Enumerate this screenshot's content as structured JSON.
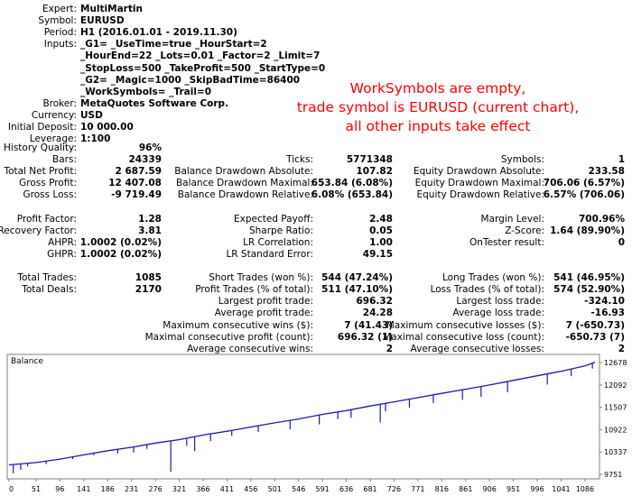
{
  "header": {
    "rows": [
      {
        "label": "Expert:",
        "value": "MultiMartin"
      },
      {
        "label": "Symbol:",
        "value": "EURUSD"
      },
      {
        "label": "Period:",
        "value": "H1 (2016.01.01 - 2019.11.30)"
      },
      {
        "label": "Inputs:",
        "value": "_G1= _UseTime=true _HourStart=2"
      },
      {
        "label": "",
        "value": "_HourEnd=22 _Lots=0.01 _Factor=2 _Limit=7"
      },
      {
        "label": "",
        "value": "_StopLoss=500 _TakeProfit=500 _StartType=0"
      },
      {
        "label": "",
        "value": "_G2= _Magic=1000 _SkipBadTime=86400"
      },
      {
        "label": "",
        "value": "_WorkSymbols= _Trail=0"
      },
      {
        "label": "Broker:",
        "value": "MetaQuotes Software Corp."
      },
      {
        "label": "Currency:",
        "value": "USD"
      },
      {
        "label": "Initial Deposit:",
        "value": "10 000.00"
      },
      {
        "label": "Leverage:",
        "value": "1:100"
      }
    ]
  },
  "annotation": {
    "lines": [
      "WorkSymbols are empty,",
      "trade symbol is EURUSD (current chart),",
      "all other inputs take effect"
    ],
    "color": "#ff0000"
  },
  "stats": {
    "col1": [
      {
        "label": "History Quality:",
        "value": "96%"
      },
      {
        "label": "Bars:",
        "value": "24339"
      },
      {
        "label": "Total Net Profit:",
        "value": "2 687.59"
      },
      {
        "label": "Gross Profit:",
        "value": "12 407.08"
      },
      {
        "label": "Gross Loss:",
        "value": "-9 719.49"
      },
      {
        "label": "",
        "value": ""
      },
      {
        "label": "Profit Factor:",
        "value": "1.28"
      },
      {
        "label": "Recovery Factor:",
        "value": "3.81"
      },
      {
        "label": "AHPR:",
        "value": "1.0002 (0.02%)"
      },
      {
        "label": "GHPR:",
        "value": "1.0002 (0.02%)"
      },
      {
        "label": "",
        "value": ""
      },
      {
        "label": "Total Trades:",
        "value": "1085"
      },
      {
        "label": "Total Deals:",
        "value": "2170"
      }
    ],
    "col2": [
      {
        "label": "",
        "value": ""
      },
      {
        "label": "Ticks:",
        "value": "5771348"
      },
      {
        "label": "Balance Drawdown Absolute:",
        "value": "107.82"
      },
      {
        "label": "Balance Drawdown Maximal:",
        "value": "653.84 (6.08%)"
      },
      {
        "label": "Balance Drawdown Relative:",
        "value": "6.08% (653.84)"
      },
      {
        "label": "",
        "value": ""
      },
      {
        "label": "Expected Payoff:",
        "value": "2.48"
      },
      {
        "label": "Sharpe Ratio:",
        "value": "0.05"
      },
      {
        "label": "LR Correlation:",
        "value": "1.00"
      },
      {
        "label": "LR Standard Error:",
        "value": "49.15"
      },
      {
        "label": "",
        "value": ""
      },
      {
        "label": "Short Trades (won %):",
        "value": "544 (47.24%)"
      },
      {
        "label": "Profit Trades (% of total):",
        "value": "511 (47.10%)"
      },
      {
        "label": "Largest profit trade:",
        "value": "696.32"
      },
      {
        "label": "Average profit trade:",
        "value": "24.28"
      },
      {
        "label": "Maximum consecutive wins ($):",
        "value": "7 (41.43)"
      },
      {
        "label": "Maximal consecutive profit (count):",
        "value": "696.32 (1)"
      },
      {
        "label": "Average consecutive wins:",
        "value": "2"
      }
    ],
    "col3": [
      {
        "label": "",
        "value": ""
      },
      {
        "label": "Symbols:",
        "value": "1"
      },
      {
        "label": "Equity Drawdown Absolute:",
        "value": "233.58"
      },
      {
        "label": "Equity Drawdown Maximal:",
        "value": "706.06 (6.57%)"
      },
      {
        "label": "Equity Drawdown Relative:",
        "value": "6.57% (706.06)"
      },
      {
        "label": "",
        "value": ""
      },
      {
        "label": "Margin Level:",
        "value": "700.96%"
      },
      {
        "label": "Z-Score:",
        "value": "1.64 (89.90%)"
      },
      {
        "label": "OnTester result:",
        "value": "0"
      },
      {
        "label": "",
        "value": ""
      },
      {
        "label": "",
        "value": ""
      },
      {
        "label": "Long Trades (won %):",
        "value": "541 (46.95%)"
      },
      {
        "label": "Loss Trades (% of total):",
        "value": "574 (52.90%)"
      },
      {
        "label": "Largest loss trade:",
        "value": "-324.10"
      },
      {
        "label": "Average loss trade:",
        "value": "-16.93"
      },
      {
        "label": "Maximum consecutive losses ($):",
        "value": "7 (-650.73)"
      },
      {
        "label": "Maximal consecutive loss (count):",
        "value": "-650.73 (7)"
      },
      {
        "label": "Average consecutive losses:",
        "value": "2"
      }
    ]
  },
  "chart_data": {
    "type": "line",
    "title": "Balance",
    "x_ticks": [
      "0",
      "51",
      "96",
      "141",
      "186",
      "231",
      "276",
      "321",
      "366",
      "411",
      "456",
      "501",
      "546",
      "591",
      "636",
      "681",
      "726",
      "771",
      "816",
      "861",
      "906",
      "951",
      "996",
      "1041",
      "1086"
    ],
    "y_ticks": [
      "12678",
      "12092",
      "11507",
      "10922",
      "10337",
      "9751"
    ],
    "ylim": [
      9751,
      12678
    ],
    "xlim": [
      0,
      1110
    ],
    "line_color": "#1a1ab0",
    "series": [
      {
        "x": [
          0,
          51,
          96,
          141,
          186,
          231,
          276,
          321,
          366,
          411,
          456,
          501,
          546,
          591,
          636,
          681,
          726,
          771,
          816,
          861,
          906,
          951,
          996,
          1041,
          1086,
          1105
        ],
        "values": [
          10000,
          10060,
          10150,
          10260,
          10370,
          10460,
          10570,
          10660,
          10780,
          10880,
          10990,
          11100,
          11200,
          11320,
          11420,
          11540,
          11650,
          11760,
          11870,
          11980,
          12090,
          12210,
          12330,
          12450,
          12590,
          12687
        ]
      }
    ],
    "drawdowns": [
      {
        "x": 8,
        "low": 9780
      },
      {
        "x": 22,
        "low": 9870
      },
      {
        "x": 35,
        "low": 9960
      },
      {
        "x": 70,
        "low": 10020
      },
      {
        "x": 120,
        "low": 10150
      },
      {
        "x": 160,
        "low": 10250
      },
      {
        "x": 205,
        "low": 10300
      },
      {
        "x": 235,
        "low": 10320
      },
      {
        "x": 260,
        "low": 10420
      },
      {
        "x": 305,
        "low": 9820
      },
      {
        "x": 335,
        "low": 10500
      },
      {
        "x": 350,
        "low": 10360
      },
      {
        "x": 380,
        "low": 10620
      },
      {
        "x": 420,
        "low": 10760
      },
      {
        "x": 470,
        "low": 10860
      },
      {
        "x": 530,
        "low": 10930
      },
      {
        "x": 585,
        "low": 11060
      },
      {
        "x": 620,
        "low": 11200
      },
      {
        "x": 645,
        "low": 11230
      },
      {
        "x": 700,
        "low": 11110
      },
      {
        "x": 710,
        "low": 11400
      },
      {
        "x": 755,
        "low": 11500
      },
      {
        "x": 800,
        "low": 11620
      },
      {
        "x": 855,
        "low": 11700
      },
      {
        "x": 890,
        "low": 11780
      },
      {
        "x": 940,
        "low": 11900
      },
      {
        "x": 1015,
        "low": 12100
      },
      {
        "x": 1060,
        "low": 12320
      },
      {
        "x": 1100,
        "low": 12520
      }
    ]
  }
}
